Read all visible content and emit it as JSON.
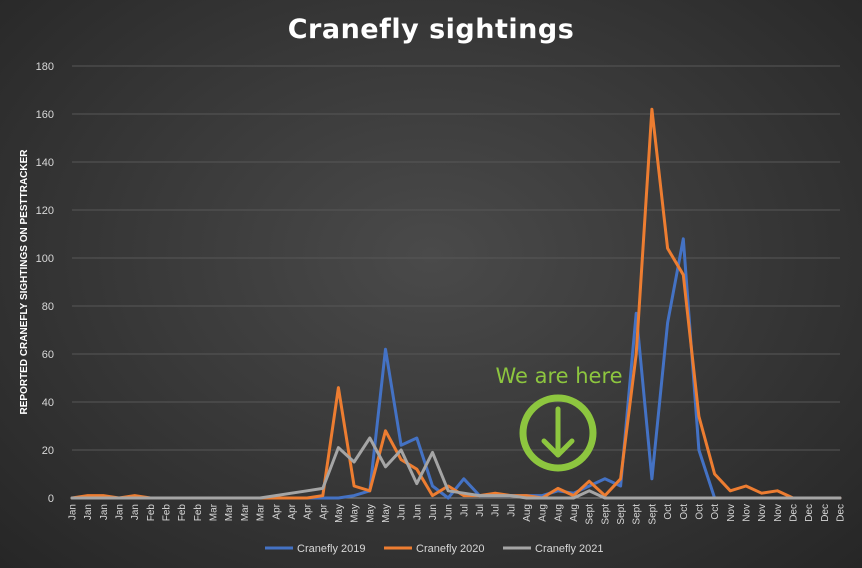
{
  "chart_data": {
    "type": "line",
    "title": "Cranefly sightings",
    "xlabel": "",
    "ylabel": "REPORTED CRANEFLY SIGHTINGS ON PESTTRACKER",
    "ylim": [
      0,
      180
    ],
    "yticks": [
      0,
      20,
      40,
      60,
      80,
      100,
      120,
      140,
      160,
      180
    ],
    "grid": true,
    "legend_position": "bottom",
    "categories": [
      "Jan",
      "Jan",
      "Jan",
      "Jan",
      "Jan",
      "Feb",
      "Feb",
      "Feb",
      "Feb",
      "Mar",
      "Mar",
      "Mar",
      "Mar",
      "Apr",
      "Apr",
      "Apr",
      "Apr",
      "May",
      "May",
      "May",
      "May",
      "Jun",
      "Jun",
      "Jun",
      "Jun",
      "Jul",
      "Jul",
      "Jul",
      "Jul",
      "Aug",
      "Aug",
      "Aug",
      "Aug",
      "Sept",
      "Sept",
      "Sept",
      "Sept",
      "Sept",
      "Oct",
      "Oct",
      "Oct",
      "Oct",
      "Nov",
      "Nov",
      "Nov",
      "Nov",
      "Dec",
      "Dec",
      "Dec",
      "Dec"
    ],
    "series": [
      {
        "name": "Cranefly 2019",
        "color": "#4472c4",
        "values": [
          0,
          0,
          0,
          0,
          0,
          0,
          0,
          0,
          0,
          0,
          0,
          0,
          0,
          0,
          0,
          0,
          0,
          0,
          1,
          3,
          62,
          22,
          25,
          5,
          0,
          8,
          1,
          1,
          1,
          1,
          1,
          3,
          2,
          5,
          8,
          5,
          77,
          8,
          73,
          108,
          20,
          0,
          0,
          0,
          0,
          0,
          0,
          0,
          0,
          0
        ]
      },
      {
        "name": "Cranefly 2020",
        "color": "#ed7d31",
        "values": [
          0,
          1,
          1,
          0,
          1,
          0,
          0,
          0,
          0,
          0,
          0,
          0,
          0,
          0,
          0,
          0,
          1,
          46,
          5,
          3,
          28,
          16,
          12,
          1,
          5,
          1,
          1,
          2,
          1,
          1,
          0,
          4,
          1,
          7,
          1,
          8,
          60,
          162,
          104,
          93,
          34,
          10,
          3,
          5,
          2,
          3,
          0,
          0,
          0,
          0
        ]
      },
      {
        "name": "Cranefly 2021",
        "color": "#a5a5a5",
        "values": [
          0,
          0,
          0,
          0,
          0,
          0,
          0,
          0,
          0,
          0,
          0,
          0,
          0,
          1,
          2,
          3,
          4,
          21,
          15,
          25,
          13,
          20,
          6,
          19,
          3,
          2,
          1,
          1,
          1,
          0,
          0,
          0,
          0,
          3,
          0,
          0,
          0,
          0,
          0,
          0,
          0,
          0,
          0,
          0,
          0,
          0,
          0,
          0,
          0,
          0
        ]
      }
    ],
    "annotation": {
      "text": "We are here",
      "color": "#8dc63f",
      "icon": "down-arrow-circle-icon",
      "x_category_index": 32
    }
  }
}
